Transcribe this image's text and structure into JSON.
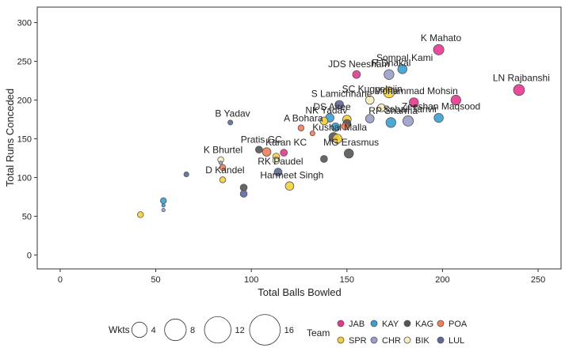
{
  "chart_data": {
    "type": "scatter",
    "xlabel": "Total Balls Bowled",
    "ylabel": "Total Runs Conceded",
    "xlim": [
      -12,
      262
    ],
    "ylim": [
      -18,
      320
    ],
    "x_ticks": [
      0,
      50,
      100,
      150,
      200,
      250
    ],
    "y_ticks": [
      0,
      50,
      100,
      150,
      200,
      250,
      300
    ],
    "grid": false,
    "teams": [
      {
        "code": "JAB",
        "color": "#e8368f"
      },
      {
        "code": "KAY",
        "color": "#3a9fd0"
      },
      {
        "code": "KAG",
        "color": "#555555"
      },
      {
        "code": "POA",
        "color": "#f07f5a"
      },
      {
        "code": "SPR",
        "color": "#f5cf3a"
      },
      {
        "code": "CHR",
        "color": "#9b9ec8"
      },
      {
        "code": "BIK",
        "color": "#f6edbd"
      },
      {
        "code": "LUL",
        "color": "#5d6a99"
      }
    ],
    "size_legend": {
      "title": "Wkts",
      "values": [
        4,
        8,
        12,
        16
      ]
    },
    "color_legend_title": "Team",
    "points": [
      {
        "label": "",
        "team": "SPR",
        "x": 42,
        "y": 52,
        "wkts": 3
      },
      {
        "label": "",
        "team": "KAY",
        "x": 54,
        "y": 70,
        "wkts": 3
      },
      {
        "label": "",
        "team": "KAY",
        "x": 54,
        "y": 64,
        "wkts": 1
      },
      {
        "label": "",
        "team": "CHR",
        "x": 54,
        "y": 58,
        "wkts": 1
      },
      {
        "label": "",
        "team": "LUL",
        "x": 66,
        "y": 104,
        "wkts": 2
      },
      {
        "label": "K Bhurtel",
        "team": "BIK",
        "x": 84,
        "y": 123,
        "wkts": 3
      },
      {
        "label": "",
        "team": "CHR",
        "x": 84,
        "y": 119,
        "wkts": 1
      },
      {
        "label": "",
        "team": "POA",
        "x": 85,
        "y": 113,
        "wkts": 3
      },
      {
        "label": "D Kandel",
        "team": "SPR",
        "x": 85,
        "y": 97,
        "wkts": 3
      },
      {
        "label": "B Yadav",
        "team": "LUL",
        "x": 89,
        "y": 171,
        "wkts": 2
      },
      {
        "label": "",
        "team": "KAG",
        "x": 96,
        "y": 87,
        "wkts": 4
      },
      {
        "label": "",
        "team": "LUL",
        "x": 96,
        "y": 79,
        "wkts": 4
      },
      {
        "label": "Pratis GC",
        "team": "KAG",
        "x": 104,
        "y": 136,
        "wkts": 4
      },
      {
        "label": "",
        "team": "POA",
        "x": 108,
        "y": 133,
        "wkts": 6
      },
      {
        "label": "",
        "team": "SPR",
        "x": 113,
        "y": 127,
        "wkts": 4
      },
      {
        "label": "",
        "team": "BIK",
        "x": 113,
        "y": 122,
        "wkts": 4
      },
      {
        "label": "Karan KC",
        "team": "JAB",
        "x": 117,
        "y": 132,
        "wkts": 4
      },
      {
        "label": "RK Paudel",
        "team": "LUL",
        "x": 114,
        "y": 107,
        "wkts": 5
      },
      {
        "label": "Harmeet Singh",
        "team": "SPR",
        "x": 120,
        "y": 89,
        "wkts": 6
      },
      {
        "label": "A Bohara",
        "team": "POA",
        "x": 126,
        "y": 164,
        "wkts": 3
      },
      {
        "label": "",
        "team": "POA",
        "x": 132,
        "y": 157,
        "wkts": 2
      },
      {
        "label": "NK Yadav",
        "team": "SPR",
        "x": 138,
        "y": 173,
        "wkts": 5
      },
      {
        "label": "DS Airee",
        "team": "KAY",
        "x": 141,
        "y": 177,
        "wkts": 6
      },
      {
        "label": "",
        "team": "KAG",
        "x": 138,
        "y": 124,
        "wkts": 4
      },
      {
        "label": "",
        "team": "KAY",
        "x": 144,
        "y": 165,
        "wkts": 6
      },
      {
        "label": "",
        "team": "KAG",
        "x": 143,
        "y": 152,
        "wkts": 7
      },
      {
        "label": "Kushal Malla",
        "team": "SPR",
        "x": 145,
        "y": 150,
        "wkts": 7
      },
      {
        "label": "S Lamichhane",
        "team": "LUL",
        "x": 146,
        "y": 194,
        "wkts": 6
      },
      {
        "label": "",
        "team": "SPR",
        "x": 150,
        "y": 175,
        "wkts": 6
      },
      {
        "label": "",
        "team": "KAG",
        "x": 150,
        "y": 170,
        "wkts": 5
      },
      {
        "label": "",
        "team": "POA",
        "x": 149,
        "y": 166,
        "wkts": 4
      },
      {
        "label": "MG Erasmus",
        "team": "KAG",
        "x": 151,
        "y": 131,
        "wkts": 7
      },
      {
        "label": "JDS Neesham",
        "team": "JAB",
        "x": 155,
        "y": 233,
        "wkts": 5
      },
      {
        "label": "SC Kuggeleijn",
        "team": "BIK",
        "x": 162,
        "y": 200,
        "wkts": 6
      },
      {
        "label": "",
        "team": "CHR",
        "x": 162,
        "y": 176,
        "wkts": 6
      },
      {
        "label": "",
        "team": "BIK",
        "x": 168,
        "y": 190,
        "wkts": 5
      },
      {
        "label": "R Dhakal",
        "team": "CHR",
        "x": 172,
        "y": 233,
        "wkts": 8
      },
      {
        "label": "",
        "team": "SPR",
        "x": 172,
        "y": 210,
        "wkts": 10
      },
      {
        "label": "RP Sharma",
        "team": "KAY",
        "x": 173,
        "y": 171,
        "wkts": 8
      },
      {
        "label": "Sompal Kami",
        "team": "KAY",
        "x": 179,
        "y": 240,
        "wkts": 7
      },
      {
        "label": "Sohail Tanvir",
        "team": "CHR",
        "x": 182,
        "y": 173,
        "wkts": 9
      },
      {
        "label": "Mohammad Mohsin",
        "team": "JAB",
        "x": 185,
        "y": 197,
        "wkts": 7
      },
      {
        "label": "K Mahato",
        "team": "JAB",
        "x": 198,
        "y": 265,
        "wkts": 9
      },
      {
        "label": "Zeeshan Maqsood",
        "team": "KAY",
        "x": 198,
        "y": 177,
        "wkts": 7
      },
      {
        "label": "",
        "team": "JAB",
        "x": 207,
        "y": 200,
        "wkts": 8
      },
      {
        "label": "LN Rajbanshi",
        "team": "JAB",
        "x": 240,
        "y": 213,
        "wkts": 10
      }
    ]
  }
}
